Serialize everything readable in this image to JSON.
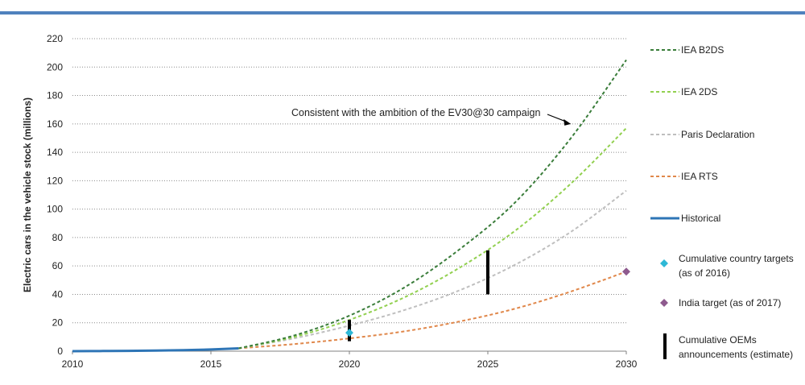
{
  "chart_data": {
    "type": "line",
    "ylabel": "Electric cars in the vehicle stock (millions)",
    "xlim": [
      2010,
      2030
    ],
    "ylim": [
      0,
      220
    ],
    "x_ticks": [
      2010,
      2015,
      2020,
      2025,
      2030
    ],
    "y_ticks": [
      0,
      20,
      40,
      60,
      80,
      100,
      120,
      140,
      160,
      180,
      200,
      220
    ],
    "grid": "horizontal dotted",
    "legend_position": "right",
    "series": [
      {
        "name": "IEA B2DS",
        "color": "#3a7d3a",
        "style": "dashed",
        "x": [
          2016,
          2018,
          2020,
          2022,
          2024,
          2026,
          2028,
          2030
        ],
        "y": [
          2,
          11,
          25,
          45,
          72,
          105,
          150,
          205
        ]
      },
      {
        "name": "IEA 2DS",
        "color": "#92d050",
        "style": "dashed",
        "x": [
          2016,
          2018,
          2020,
          2022,
          2024,
          2026,
          2028,
          2030
        ],
        "y": [
          2,
          10,
          22,
          38,
          59,
          85,
          118,
          157
        ]
      },
      {
        "name": "Paris Declaration",
        "color": "#bfbfbf",
        "style": "dashed",
        "x": [
          2016,
          2018,
          2020,
          2022,
          2024,
          2026,
          2028,
          2030
        ],
        "y": [
          2,
          9,
          18,
          29,
          43,
          61,
          84,
          113
        ]
      },
      {
        "name": "IEA RTS",
        "color": "#e0874a",
        "style": "dashed",
        "x": [
          2016,
          2018,
          2020,
          2022,
          2024,
          2026,
          2028,
          2030
        ],
        "y": [
          2,
          5,
          9,
          14,
          21,
          30,
          42,
          56
        ]
      },
      {
        "name": "Historical",
        "color": "#2e75b6",
        "style": "solid",
        "x": [
          2010,
          2011,
          2012,
          2013,
          2014,
          2015,
          2016
        ],
        "y": [
          0,
          0.1,
          0.2,
          0.4,
          0.7,
          1.2,
          2
        ]
      }
    ],
    "markers": [
      {
        "name": "Cumulative country targets (as of 2016)",
        "shape": "diamond",
        "color": "#2eb8d6",
        "x": 2020,
        "y": 13
      },
      {
        "name": "India target (as of 2017)",
        "shape": "diamond",
        "color": "#8e5a8e",
        "x": 2030,
        "y": 56
      }
    ],
    "ranges": [
      {
        "name": "Cumulative OEMs announcements (estimate)",
        "color": "#000000",
        "x": 2020,
        "y_min": 7,
        "y_max": 22
      },
      {
        "name": "Cumulative OEMs announcements (estimate)",
        "color": "#000000",
        "x": 2025,
        "y_min": 40,
        "y_max": 71
      }
    ],
    "annotation": {
      "text": "Consistent with the ambition of the EV30@30 campaign",
      "target_series": "IEA B2DS",
      "x": 2028,
      "y": 160
    }
  },
  "legend": [
    {
      "label": "IEA B2DS",
      "kind": "dashed",
      "color": "#3a7d3a"
    },
    {
      "label": "IEA 2DS",
      "kind": "dashed",
      "color": "#92d050"
    },
    {
      "label": "Paris Declaration",
      "kind": "dashed",
      "color": "#bfbfbf"
    },
    {
      "label": "IEA RTS",
      "kind": "dashed",
      "color": "#e0874a"
    },
    {
      "label": "Historical",
      "kind": "solid",
      "color": "#2e75b6"
    },
    {
      "label": "Cumulative country targets (as of 2016)",
      "kind": "diamond",
      "color": "#2eb8d6",
      "lines": [
        "Cumulative country targets",
        "(as of 2016)"
      ]
    },
    {
      "label": "India target (as of 2017)",
      "kind": "diamond",
      "color": "#8e5a8e",
      "lines": [
        "India target (as of 2017)"
      ]
    },
    {
      "label": "Cumulative OEMs announcements (estimate)",
      "kind": "bar",
      "color": "#000000",
      "lines": [
        "Cumulative OEMs",
        "announcements (estimate)"
      ]
    }
  ]
}
